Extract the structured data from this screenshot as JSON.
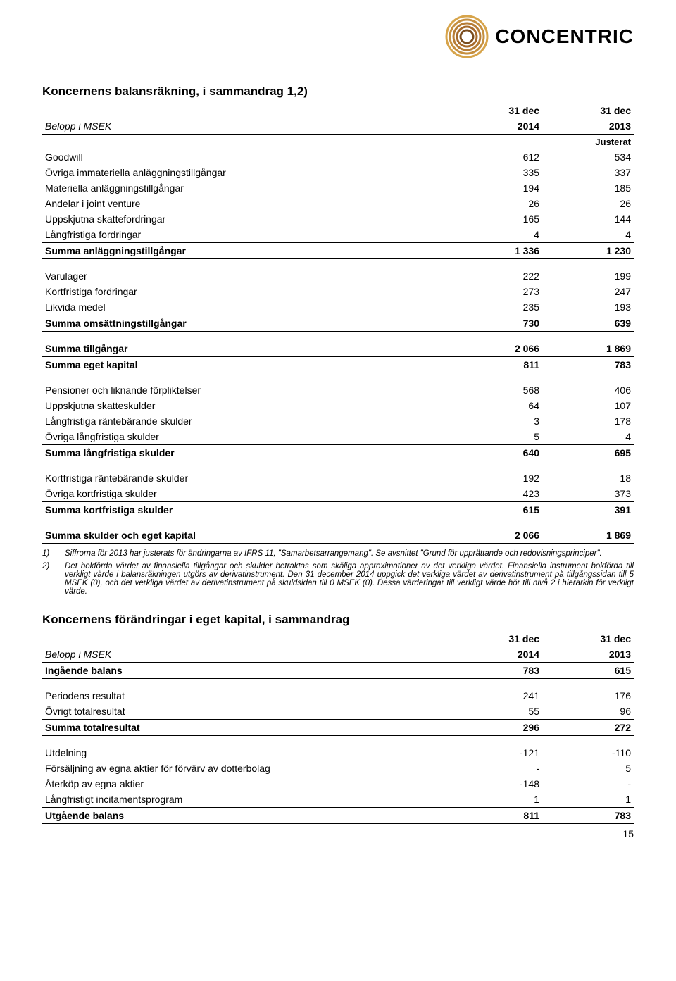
{
  "logo": {
    "text": "CONCENTRIC",
    "ring_colors": [
      "#d7a44b",
      "#c69040",
      "#b77d36",
      "#a66a2c",
      "#7a4d1f"
    ]
  },
  "page_number": "15",
  "table1": {
    "title": "Koncernens balansräkning, i sammandrag 1,2)",
    "col_label": "Belopp i MSEK",
    "col1_top": "31 dec",
    "col1_bot": "2014",
    "col2_top": "31 dec",
    "col2_bot": "2013",
    "adjusted": "Justerat",
    "rows": [
      {
        "label": "Goodwill",
        "a": "612",
        "b": "534",
        "bold": false
      },
      {
        "label": "Övriga immateriella anläggningstillgångar",
        "a": "335",
        "b": "337",
        "bold": false
      },
      {
        "label": "Materiella anläggningstillgångar",
        "a": "194",
        "b": "185",
        "bold": false
      },
      {
        "label": "Andelar i joint venture",
        "a": "26",
        "b": "26",
        "bold": false
      },
      {
        "label": "Uppskjutna skattefordringar",
        "a": "165",
        "b": "144",
        "bold": false
      },
      {
        "label": "Långfristiga fordringar",
        "a": "4",
        "b": "4",
        "bold": false
      },
      {
        "label": "Summa anläggningstillgångar",
        "a": "1 336",
        "b": "1 230",
        "bold": true,
        "rule_above": true,
        "rule_below": true,
        "gap_after": true
      },
      {
        "label": "Varulager",
        "a": "222",
        "b": "199",
        "bold": false
      },
      {
        "label": "Kortfristiga fordringar",
        "a": "273",
        "b": "247",
        "bold": false
      },
      {
        "label": "Likvida medel",
        "a": "235",
        "b": "193",
        "bold": false
      },
      {
        "label": "Summa omsättningstillgångar",
        "a": "730",
        "b": "639",
        "bold": true,
        "rule_above": true,
        "rule_below": true,
        "gap_after": true
      },
      {
        "label": "Summa tillgångar",
        "a": "2 066",
        "b": "1 869",
        "bold": true,
        "rule_below": true
      },
      {
        "label": "Summa eget kapital",
        "a": "811",
        "b": "783",
        "bold": true,
        "rule_below": true,
        "gap_after": true
      },
      {
        "label": "Pensioner och liknande förpliktelser",
        "a": "568",
        "b": "406",
        "bold": false
      },
      {
        "label": "Uppskjutna skatteskulder",
        "a": "64",
        "b": "107",
        "bold": false
      },
      {
        "label": "Långfristiga räntebärande skulder",
        "a": "3",
        "b": "178",
        "bold": false
      },
      {
        "label": "Övriga långfristiga skulder",
        "a": "5",
        "b": "4",
        "bold": false
      },
      {
        "label": "Summa långfristiga skulder",
        "a": "640",
        "b": "695",
        "bold": true,
        "rule_above": true,
        "rule_below": true,
        "gap_after": true
      },
      {
        "label": "Kortfristiga räntebärande skulder",
        "a": "192",
        "b": "18",
        "bold": false
      },
      {
        "label": "Övriga kortfristiga skulder",
        "a": "423",
        "b": "373",
        "bold": false
      },
      {
        "label": "Summa kortfristiga skulder",
        "a": "615",
        "b": "391",
        "bold": true,
        "rule_above": true,
        "rule_below": true,
        "gap_after": true
      },
      {
        "label": "Summa skulder och eget kapital",
        "a": "2 066",
        "b": "1 869",
        "bold": true,
        "rule_below": true
      }
    ]
  },
  "footnotes": {
    "items": [
      {
        "marker": "1)",
        "text": "Siffrorna för 2013 har justerats för ändringarna av IFRS 11, \"Samarbetsarrangemang\". Se avsnittet \"Grund för upprättande och redovisningsprinciper\"."
      },
      {
        "marker": "2)",
        "text": "Det bokförda värdet av finansiella tillgångar och skulder betraktas som skäliga approximationer av det verkliga värdet. Finansiella instrument bokförda till verkligt värde i balansräkningen utgörs av derivatinstrument. Den 31 december 2014 uppgick det verkliga värdet av derivatinstrument på tillgångssidan till 5 MSEK (0), och det verkliga värdet av derivatinstrument på skuldsidan till 0 MSEK (0). Dessa värderingar till verkligt värde hör till nivå 2 i hierarkin för verkligt värde."
      }
    ]
  },
  "table2": {
    "title": "Koncernens förändringar i eget kapital, i sammandrag",
    "col_label": "Belopp i MSEK",
    "col1_top": "31 dec",
    "col1_bot": "2014",
    "col2_top": "31 dec",
    "col2_bot": "2013",
    "rows": [
      {
        "label": "Ingående balans",
        "a": "783",
        "b": "615",
        "bold": true,
        "rule_below": true,
        "gap_after": true
      },
      {
        "label": "Periodens resultat",
        "a": "241",
        "b": "176",
        "bold": false
      },
      {
        "label": "Övrigt totalresultat",
        "a": "55",
        "b": "96",
        "bold": false
      },
      {
        "label": "Summa totalresultat",
        "a": "296",
        "b": "272",
        "bold": true,
        "rule_above": true,
        "rule_below": true,
        "gap_after": true
      },
      {
        "label": "Utdelning",
        "a": "-121",
        "b": "-110",
        "bold": false
      },
      {
        "label": "Försäljning av egna aktier för förvärv av dotterbolag",
        "a": "-",
        "b": "5",
        "bold": false
      },
      {
        "label": "Återköp av egna aktier",
        "a": "-148",
        "b": "-",
        "bold": false
      },
      {
        "label": "Långfristigt incitamentsprogram",
        "a": "1",
        "b": "1",
        "bold": false
      },
      {
        "label": "Utgående balans",
        "a": "811",
        "b": "783",
        "bold": true,
        "rule_above": true,
        "rule_below": true
      }
    ]
  }
}
